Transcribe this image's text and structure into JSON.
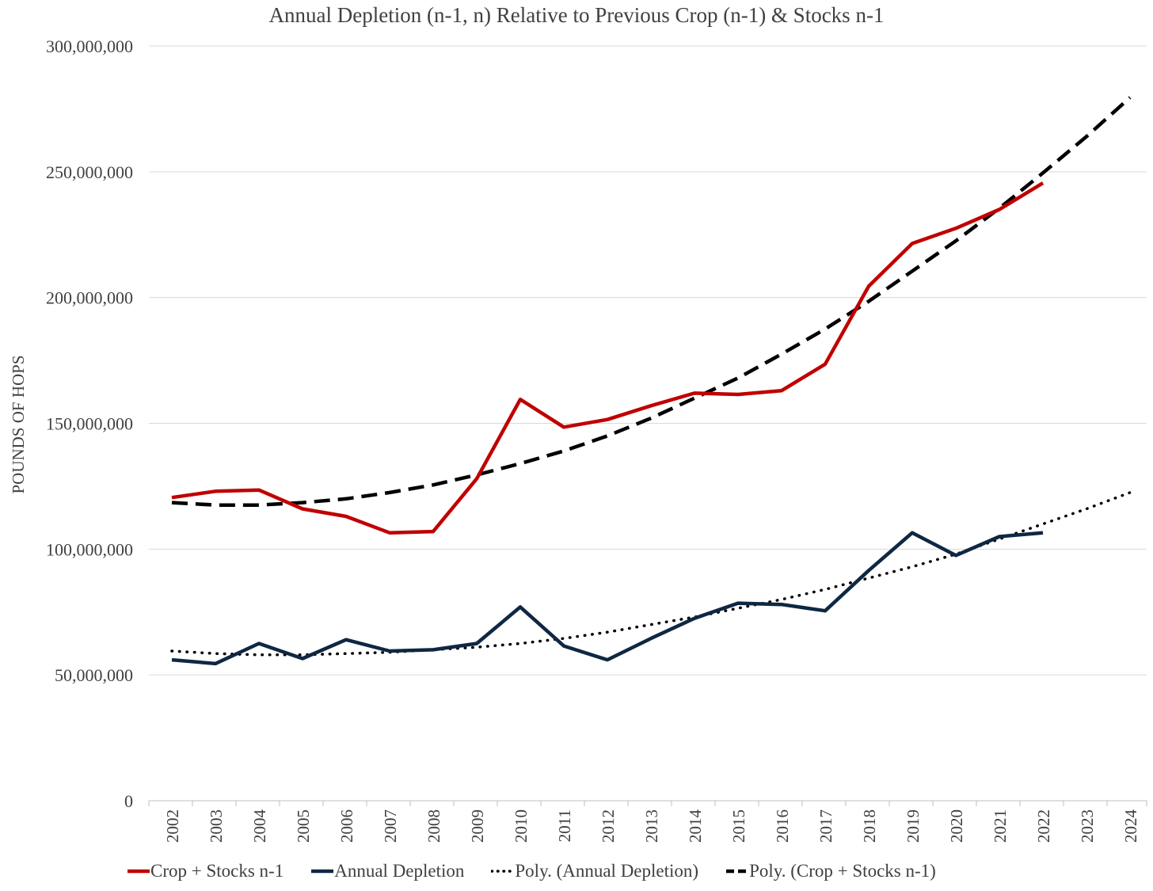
{
  "chart_data": {
    "type": "line",
    "title": "Annual Depletion (n-1, n) Relative to Previous Crop (n-1) & Stocks n-1",
    "xlabel": "",
    "ylabel": "POUNDS OF HOPS",
    "ylim": [
      0,
      300000000
    ],
    "yticks": [
      0,
      50000000,
      100000000,
      150000000,
      200000000,
      250000000,
      300000000
    ],
    "ytick_labels": [
      "0",
      "50,000,000",
      "100,000,000",
      "150,000,000",
      "200,000,000",
      "250,000,000",
      "300,000,000"
    ],
    "grid": "horizontal",
    "legend_position": "bottom",
    "categories": [
      "2002",
      "2003",
      "2004",
      "2005",
      "2006",
      "2007",
      "2008",
      "2009",
      "2010",
      "2011",
      "2012",
      "2013",
      "2014",
      "2015",
      "2016",
      "2017",
      "2018",
      "2019",
      "2020",
      "2021",
      "2022",
      "2023",
      "2024"
    ],
    "series": [
      {
        "name": "Crop + Stocks n-1",
        "color": "#c00000",
        "style": "solid",
        "values": [
          120500000,
          123000000,
          123500000,
          116000000,
          113000000,
          106500000,
          107000000,
          128000000,
          159500000,
          148500000,
          151500000,
          157000000,
          162000000,
          161500000,
          163000000,
          173500000,
          204500000,
          221500000,
          227500000,
          235000000,
          245500000,
          null,
          null
        ]
      },
      {
        "name": "Annual Depletion",
        "color": "#0f2742",
        "style": "solid",
        "values": [
          56000000,
          54500000,
          62500000,
          56500000,
          64000000,
          59500000,
          60000000,
          62500000,
          77000000,
          61500000,
          56000000,
          64500000,
          72500000,
          78500000,
          78000000,
          75500000,
          91500000,
          106500000,
          97500000,
          105000000,
          106500000,
          null,
          null
        ]
      },
      {
        "name": "Poly. (Annual Depletion)",
        "color": "#000000",
        "style": "dotted",
        "values": [
          59500000,
          58500000,
          58000000,
          58000000,
          58500000,
          59000000,
          60000000,
          61000000,
          62500000,
          64500000,
          67000000,
          70000000,
          73000000,
          76500000,
          80000000,
          84000000,
          88500000,
          93000000,
          98000000,
          104000000,
          110000000,
          116000000,
          122500000
        ]
      },
      {
        "name": "Poly. (Crop + Stocks n-1)",
        "color": "#000000",
        "style": "dashed",
        "values": [
          118500000,
          117500000,
          117500000,
          118500000,
          120000000,
          122500000,
          125500000,
          129500000,
          134000000,
          139000000,
          145000000,
          152000000,
          160000000,
          168000000,
          177500000,
          187500000,
          198500000,
          210500000,
          222500000,
          235500000,
          249500000,
          264000000,
          279500000
        ]
      }
    ]
  }
}
